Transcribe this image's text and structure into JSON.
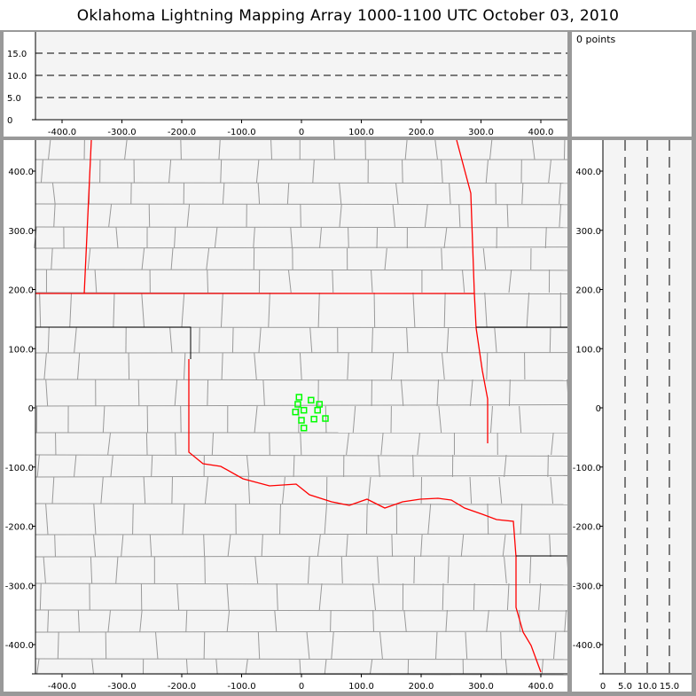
{
  "title": "Oklahoma Lightning Mapping Array   1000-1100 UTC  October 03, 2010",
  "points_label": "0 points",
  "colors": {
    "background": "#999999",
    "plot_bg": "#f4f4f4",
    "state_border": "#ff0000",
    "county_border": "#999999",
    "source_marker": "#00ff00"
  },
  "top_panel": {
    "y_ticks": [
      "0",
      "5.0",
      "10.0",
      "15.0"
    ],
    "x_ticks": [
      "-400.0",
      "-300.0",
      "-200.0",
      "-100.0",
      "0",
      "100.0",
      "200.0",
      "300.0",
      "400.0"
    ]
  },
  "main_panel": {
    "x_ticks": [
      "-400.0",
      "-300.0",
      "-200.0",
      "-100.0",
      "0",
      "100.0",
      "200.0",
      "300.0",
      "400.0"
    ],
    "y_ticks": [
      "400.0",
      "300.0",
      "200.0",
      "100.0",
      "0",
      "-100.0",
      "-200.0",
      "-300.0",
      "-400.0"
    ]
  },
  "right_panel": {
    "x_ticks": [
      "0",
      "5.0",
      "10.0",
      "15.0"
    ],
    "y_ticks": [
      "400.0",
      "300.0",
      "200.0",
      "100.0",
      "0",
      "-100.0",
      "-200.0",
      "-300.0",
      "-400.0"
    ]
  },
  "sources_km": [
    [
      -4,
      18
    ],
    [
      16,
      13
    ],
    [
      -6,
      6
    ],
    [
      30,
      6
    ],
    [
      -10,
      -7
    ],
    [
      4,
      -4
    ],
    [
      27,
      -4
    ],
    [
      0,
      -21
    ],
    [
      21,
      -19
    ],
    [
      40,
      -18
    ],
    [
      4,
      -34
    ]
  ]
}
